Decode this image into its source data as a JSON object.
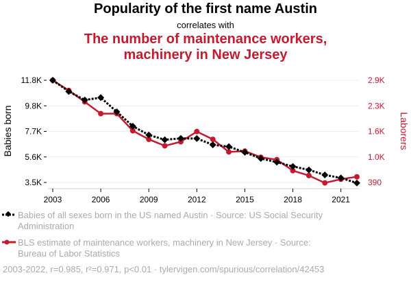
{
  "chart_data": {
    "type": "line",
    "title": "Popularity of the first name Austin",
    "subtitle": "correlates with",
    "title2_lines": [
      "The number of maintenance workers,",
      "machinery in New Jersey"
    ],
    "x": [
      2003,
      2004,
      2005,
      2006,
      2007,
      2008,
      2009,
      2010,
      2011,
      2012,
      2013,
      2014,
      2015,
      2016,
      2017,
      2018,
      2019,
      2020,
      2021,
      2022
    ],
    "x_ticks": [
      "2003",
      "2006",
      "2009",
      "2012",
      "2015",
      "2018",
      "2021"
    ],
    "series": [
      {
        "name": "Babies of all sexes born in the US named Austin · Source: US Social Security Administration",
        "axis": "left",
        "color": "#000000",
        "values": [
          11800,
          10890,
          10200,
          10390,
          9240,
          8070,
          7360,
          6970,
          7080,
          7070,
          6560,
          6410,
          5950,
          5450,
          5150,
          4800,
          4520,
          4110,
          3870,
          3460
        ]
      },
      {
        "name": "BLS estimate of maintenance workers, machinery in New Jersey · Source: Bureau of Labor Statistics",
        "axis": "right",
        "color": "#c41a30",
        "values": [
          2900,
          2650,
          2370,
          2080,
          2080,
          1660,
          1450,
          1290,
          1390,
          1640,
          1450,
          1140,
          1160,
          1010,
          950,
          680,
          560,
          380,
          470,
          530
        ]
      }
    ],
    "ylabel_left": "Babies born",
    "ylabel_right": "Laborers",
    "yticks_left": [
      "11.8K",
      "9.8K",
      "7.7K",
      "5.6K",
      "3.5K"
    ],
    "yticks_right": [
      "2.9K",
      "2.3K",
      "1.6K",
      "1.0K",
      "390"
    ],
    "ylim_left": [
      3500,
      11800
    ],
    "ylim_right": [
      390,
      2900
    ],
    "grid": true,
    "legend_lines": [
      [
        "Babies of all sexes born in the US named Austin · Source: US Social Security",
        "Administration"
      ],
      [
        "BLS estimate of maintenance workers, machinery in New Jersey · Source:",
        "Bureau of Labor Statistics"
      ]
    ],
    "footer": "2003-2022, r=0.985, r²=0.971, p<0.01 · tylervigen.com/spurious/correlation/42453"
  }
}
